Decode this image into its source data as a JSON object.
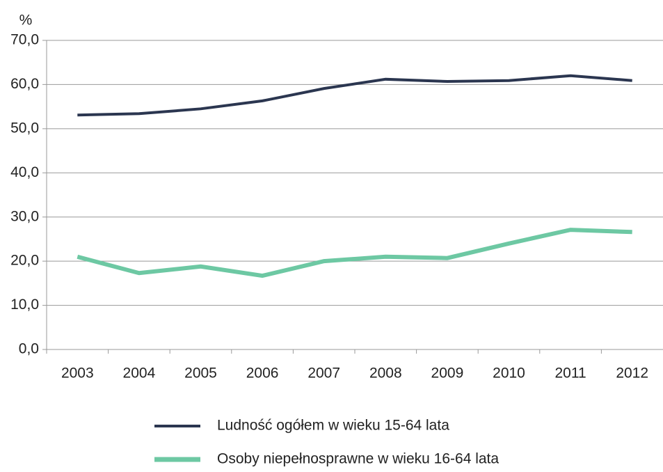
{
  "chart_data": {
    "type": "line",
    "ylabel": "%",
    "categories": [
      "2003",
      "2004",
      "2005",
      "2006",
      "2007",
      "2008",
      "2009",
      "2010",
      "2011",
      "2012"
    ],
    "series": [
      {
        "name": "Ludność ogółem w wieku 15-64 lata",
        "color": "#2b3650",
        "values": [
          53.1,
          53.4,
          54.5,
          56.3,
          59.1,
          61.2,
          60.7,
          60.9,
          62.0,
          60.9
        ]
      },
      {
        "name": "Osoby niepełnosprawne w wieku 16-64 lata",
        "color": "#6dc8a3",
        "values": [
          21.0,
          17.3,
          18.8,
          16.7,
          20.0,
          21.0,
          20.7,
          24.0,
          27.1,
          26.6
        ]
      }
    ],
    "ylim": [
      0,
      70
    ],
    "yticks": [
      {
        "value": 0,
        "label": "0,0"
      },
      {
        "value": 10,
        "label": "10,0"
      },
      {
        "value": 20,
        "label": "20,0"
      },
      {
        "value": 30,
        "label": "30,0"
      },
      {
        "value": 40,
        "label": "40,0"
      },
      {
        "value": 50,
        "label": "50,0"
      },
      {
        "value": 60,
        "label": "60,0"
      },
      {
        "value": 70,
        "label": "70,0"
      }
    ],
    "grid": true
  }
}
